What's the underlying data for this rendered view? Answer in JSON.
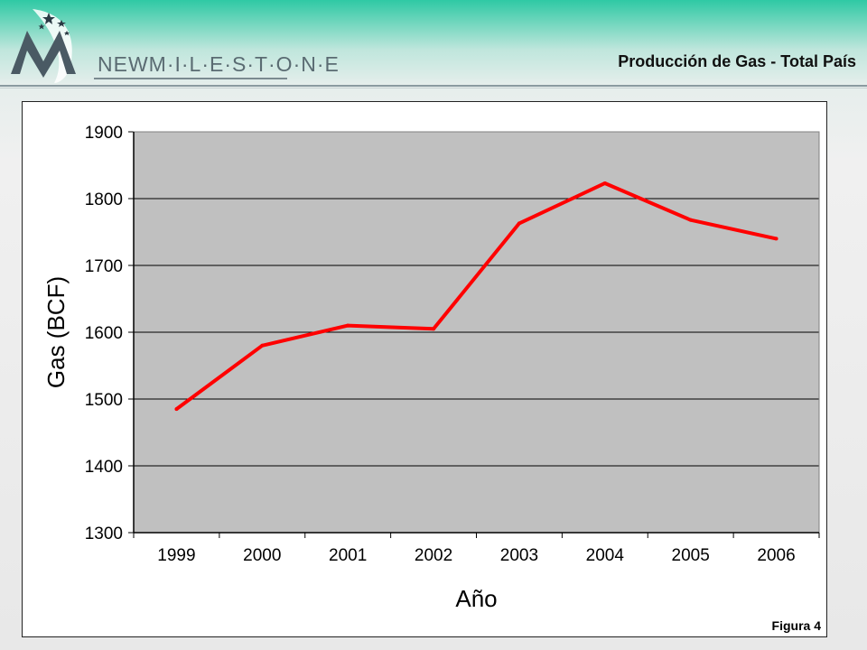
{
  "header": {
    "brand": "NEWMILESTONE",
    "brand_display": "NEWM·I·L·E·S·T·O·N·E",
    "title": "Producción de Gas -  Total País"
  },
  "colors": {
    "accent": "#2fc9a4",
    "line": "#ff0000",
    "plot_bg": "#c0c0c0"
  },
  "figure_label": "Figura 4",
  "chart_data": {
    "type": "line",
    "title": "",
    "xlabel": "Año",
    "ylabel": "Gas (BCF)",
    "categories": [
      "1999",
      "2000",
      "2001",
      "2002",
      "2003",
      "2004",
      "2005",
      "2006"
    ],
    "series": [
      {
        "values": [
          1485,
          1580,
          1610,
          1605,
          1763,
          1823,
          1768,
          1740
        ]
      }
    ],
    "ylim": [
      1300,
      1900
    ],
    "yticks": [
      1300,
      1400,
      1500,
      1600,
      1700,
      1800,
      1900
    ],
    "grid": true,
    "legend": "none"
  }
}
